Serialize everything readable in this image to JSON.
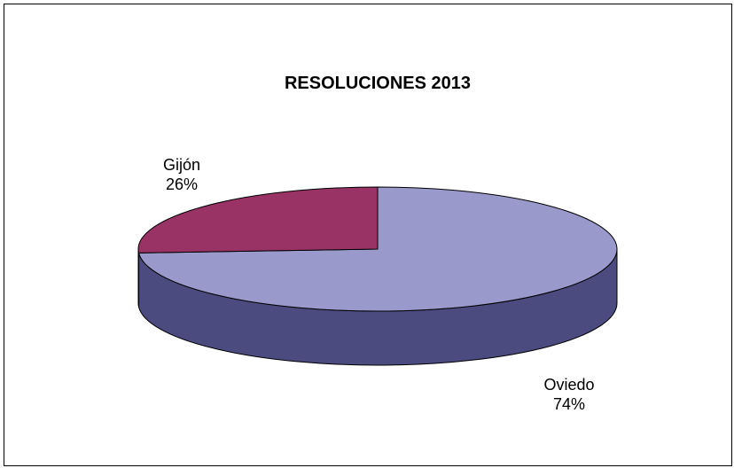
{
  "chart_data": {
    "type": "pie",
    "title": "RESOLUCIONES 2013",
    "three_d": true,
    "slices": [
      {
        "name": "Oviedo",
        "value": 74,
        "label": "74%",
        "color": "#9999cc",
        "side_color": "#4b4b80"
      },
      {
        "name": "Gijón",
        "value": 26,
        "label": "26%",
        "color": "#993366",
        "side_color": "#5c1f3d"
      }
    ],
    "outline_color": "#000000"
  }
}
